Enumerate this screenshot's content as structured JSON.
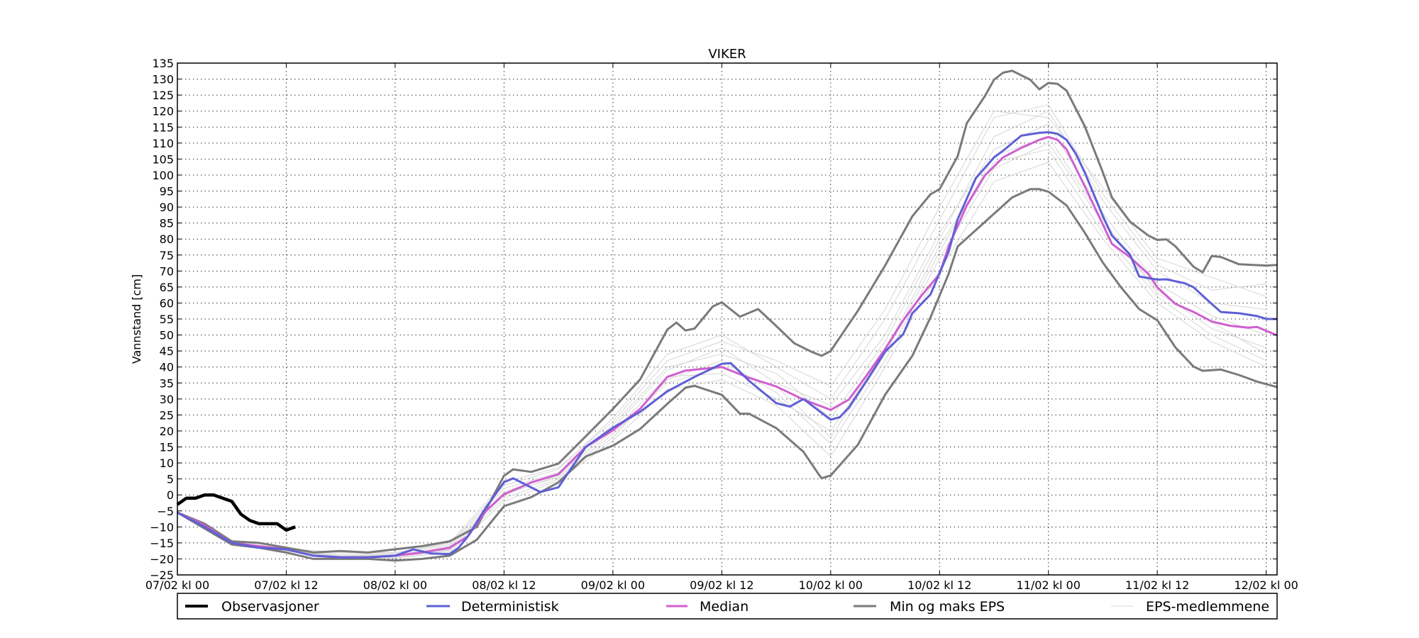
{
  "chart_data": {
    "type": "line",
    "title": "VIKER",
    "xlabel": "",
    "ylabel": "Vannstand [cm]",
    "xunit": "hours since 07/02 kl 00",
    "xlim": [
      0,
      121.2
    ],
    "ylim": [
      -25,
      135
    ],
    "grid": true,
    "legend_position": "below-plot",
    "yticks": [
      -25,
      -20,
      -15,
      -10,
      -5,
      0,
      5,
      10,
      15,
      20,
      25,
      30,
      35,
      40,
      45,
      50,
      55,
      60,
      65,
      70,
      75,
      80,
      85,
      90,
      95,
      100,
      105,
      110,
      115,
      120,
      125,
      130,
      135
    ],
    "ytick_labels": [
      "−25",
      "−20",
      "−15",
      "−10",
      "−5",
      "0",
      "5",
      "10",
      "15",
      "20",
      "25",
      "30",
      "35",
      "40",
      "45",
      "50",
      "55",
      "60",
      "65",
      "70",
      "75",
      "80",
      "85",
      "90",
      "95",
      "100",
      "105",
      "110",
      "115",
      "120",
      "125",
      "130",
      "135"
    ],
    "xticks": [
      0,
      12,
      24,
      36,
      48,
      60,
      72,
      84,
      96,
      108,
      120
    ],
    "xtick_labels": [
      "07/02 kl 00",
      "07/02 kl 12",
      "08/02 kl 00",
      "08/02 kl 12",
      "09/02 kl 00",
      "09/02 kl 12",
      "10/02 kl 00",
      "10/02 kl 12",
      "11/02 kl 00",
      "11/02 kl 12",
      "12/02 kl 00"
    ],
    "colors": {
      "observations": "#000000",
      "deterministic": "#5f5fd6",
      "median": "#cf5fcf",
      "minmax": "#7a7a7a",
      "members": "#d6d6d6"
    },
    "legend": [
      "Observasjoner",
      "Deterministisk",
      "Median",
      "Min og maks EPS",
      "EPS-medlemmene"
    ],
    "series": {
      "observations": {
        "name": "Observasjoner",
        "x": [
          0,
          1,
          2,
          3,
          4,
          5,
          6,
          7,
          8,
          9,
          10,
          11,
          12,
          13
        ],
        "y": [
          -3,
          -1,
          -1,
          0,
          0,
          -1,
          -2,
          -6,
          -8,
          -9,
          -9,
          -9,
          -11,
          -10
        ]
      },
      "deterministic": {
        "name": "Deterministisk",
        "x": [
          0,
          3,
          6,
          9,
          12,
          15,
          18,
          21,
          24,
          26,
          28,
          30,
          31,
          32,
          34,
          36,
          37,
          40,
          42,
          45,
          48,
          51,
          54,
          57,
          60,
          61,
          63,
          66,
          67.5,
          69,
          72,
          73,
          74,
          76,
          78,
          80,
          81,
          83,
          85,
          86,
          88,
          90,
          91,
          93,
          95,
          96,
          97,
          98,
          99,
          100,
          102,
          103,
          105,
          106,
          108,
          109,
          111,
          112,
          114,
          115,
          117,
          119,
          120,
          121.2
        ],
        "y": [
          -5.5,
          -10,
          -15,
          -16.5,
          -17,
          -19,
          -19.5,
          -19.5,
          -19,
          -17,
          -18.3,
          -18.5,
          -16.5,
          -13,
          -4,
          4,
          5.2,
          0.9,
          2.4,
          15,
          21,
          26,
          32.4,
          36.9,
          41,
          41.2,
          35.7,
          28.7,
          27.6,
          30,
          23.5,
          24.3,
          27.3,
          35.8,
          44.8,
          50.3,
          56.8,
          62.7,
          76,
          86.2,
          99,
          105.5,
          107.6,
          112.3,
          113.2,
          113.4,
          112.9,
          111,
          106.8,
          100.8,
          87.1,
          81.1,
          75.1,
          68.3,
          67.3,
          67.4,
          66.2,
          64.9,
          59.7,
          57.2,
          56.8,
          55.9,
          55,
          55
        ]
      },
      "median": {
        "name": "Median",
        "x": [
          0,
          3,
          6,
          9,
          12,
          15,
          18,
          21,
          24,
          27,
          30,
          32,
          34,
          36,
          39,
          42,
          45,
          48,
          51,
          54,
          56,
          60,
          63,
          66,
          69,
          72,
          74,
          76,
          78,
          80,
          82,
          84,
          85,
          87,
          89,
          91,
          93,
          95,
          96,
          97,
          98,
          100,
          102,
          103,
          105,
          107,
          108,
          110,
          112,
          114,
          116,
          118,
          119,
          121.2
        ],
        "y": [
          -5.5,
          -9.5,
          -15,
          -16,
          -17,
          -19,
          -19.5,
          -19.5,
          -19,
          -18,
          -16.5,
          -13,
          -5,
          0.2,
          3.9,
          6.5,
          15,
          20.2,
          26.9,
          36.9,
          38.9,
          40,
          36.6,
          33.9,
          29.8,
          26.6,
          29.8,
          37.5,
          45.6,
          54.6,
          62.3,
          69.1,
          77.7,
          90.5,
          99.9,
          105.5,
          108.5,
          111,
          111.9,
          111,
          108,
          96.5,
          84.5,
          78.5,
          74.3,
          69.1,
          64.9,
          59.7,
          57.2,
          54.2,
          52.9,
          52.3,
          52.5,
          49.9
        ]
      },
      "max": {
        "name": "Min og maks EPS",
        "x": [
          0,
          3,
          6,
          9,
          12,
          15,
          18,
          21,
          24,
          27,
          30,
          33,
          36,
          37,
          39,
          42,
          45,
          48,
          51,
          54,
          55,
          56,
          57,
          59,
          60,
          62,
          64,
          66,
          68,
          70,
          71,
          72,
          75,
          78,
          81,
          83,
          84,
          86,
          87,
          89,
          90,
          91,
          92,
          94,
          95,
          96,
          97,
          98,
          100,
          102,
          103,
          105,
          107,
          108,
          109,
          110,
          112,
          113,
          114,
          115,
          117,
          120,
          121.2
        ],
        "y": [
          -5.5,
          -9,
          -14.5,
          -15,
          -16.5,
          -18,
          -17.5,
          -18,
          -17,
          -16,
          -14.5,
          -10,
          6,
          8,
          7.2,
          9.8,
          18.3,
          26.9,
          36.1,
          51.7,
          53.9,
          51.4,
          52,
          58.9,
          60.2,
          55.7,
          58.1,
          52.8,
          47.4,
          44.6,
          43.5,
          45,
          57.6,
          71.7,
          87.1,
          94,
          95.6,
          105.9,
          116.2,
          124.7,
          129.8,
          132,
          132.6,
          129.8,
          126.8,
          128.8,
          128.5,
          126.4,
          115.3,
          100.8,
          93,
          85.4,
          81.1,
          79.7,
          79.9,
          77.7,
          71.3,
          69.6,
          74.7,
          74.4,
          72.1,
          71.7,
          71.9
        ]
      },
      "min": {
        "name": "Min og maks EPS",
        "x": [
          0,
          3,
          6,
          9,
          12,
          15,
          18,
          21,
          24,
          27,
          30,
          33,
          36,
          39,
          42,
          45,
          48,
          51,
          54,
          56,
          57,
          60,
          62,
          63,
          66,
          69,
          70.5,
          71,
          72,
          75,
          78,
          81,
          83,
          85,
          86,
          88,
          90,
          92,
          94,
          95,
          96,
          98,
          100,
          102,
          104,
          106,
          108,
          110,
          112,
          113,
          115,
          117,
          119,
          121.2
        ],
        "y": [
          -5.5,
          -10.5,
          -15.5,
          -16.5,
          -18,
          -20,
          -20,
          -20,
          -20.5,
          -20,
          -19,
          -14,
          -3.5,
          -0.7,
          3.9,
          12,
          15.4,
          20.6,
          28.5,
          33.5,
          34.1,
          31.3,
          25.4,
          25.4,
          20.9,
          13.5,
          7.2,
          5.2,
          6.1,
          15.7,
          31.3,
          43.5,
          55.5,
          69.1,
          77.7,
          82.8,
          87.9,
          93,
          95.6,
          95.6,
          94.8,
          90.5,
          82,
          72.6,
          64.9,
          58.1,
          54.6,
          46.1,
          40.1,
          38.8,
          39.2,
          37.5,
          35.4,
          33.7
        ]
      },
      "members": {
        "name": "EPS-medlemmene",
        "x": [
          0,
          6,
          12,
          18,
          24,
          30,
          36,
          42,
          48,
          54,
          60,
          66,
          72,
          78,
          84,
          90,
          96,
          102,
          108,
          114,
          120
        ],
        "ensemble": [
          [
            -5.5,
            -15,
            -17,
            -19,
            -18.5,
            -16,
            2,
            7,
            22,
            40,
            44,
            38,
            24,
            48,
            80,
            112,
            120,
            92,
            70,
            60,
            58
          ],
          [
            -5.5,
            -15.3,
            -17.5,
            -19.5,
            -19.5,
            -17.5,
            -1,
            5,
            18,
            36,
            42,
            32,
            16,
            42,
            74,
            102,
            110,
            85,
            64,
            52,
            46
          ],
          [
            -5.5,
            -14.8,
            -16.8,
            -18,
            -18,
            -15.5,
            3,
            8,
            24,
            44,
            50,
            40,
            30,
            55,
            86,
            118,
            122,
            94,
            72,
            64,
            66
          ],
          [
            -5.5,
            -15.2,
            -17.3,
            -19.2,
            -19,
            -17,
            0,
            6,
            20,
            37,
            38,
            30,
            20,
            45,
            78,
            104,
            108,
            82,
            62,
            50,
            42
          ],
          [
            -5.5,
            -15.1,
            -17.2,
            -19,
            -18.8,
            -16.5,
            1,
            6.5,
            21,
            39,
            46,
            35,
            28,
            50,
            82,
            108,
            116,
            88,
            66,
            56,
            50
          ],
          [
            -5.5,
            -15.4,
            -17.6,
            -19.6,
            -19.8,
            -18,
            -2,
            4.5,
            17,
            33,
            36,
            28,
            12,
            40,
            70,
            98,
            104,
            80,
            60,
            48,
            40
          ],
          [
            -5.5,
            -14.9,
            -17,
            -18.5,
            -18.2,
            -15,
            4,
            8.5,
            23,
            42,
            48,
            42,
            34,
            58,
            90,
            120,
            118,
            96,
            74,
            68,
            62
          ],
          [
            -5.5,
            -15.3,
            -17.4,
            -19.3,
            -19.2,
            -17.2,
            0.5,
            5.5,
            19,
            35,
            40,
            34,
            18,
            44,
            76,
            106,
            112,
            86,
            63,
            54,
            44
          ]
        ]
      }
    }
  }
}
